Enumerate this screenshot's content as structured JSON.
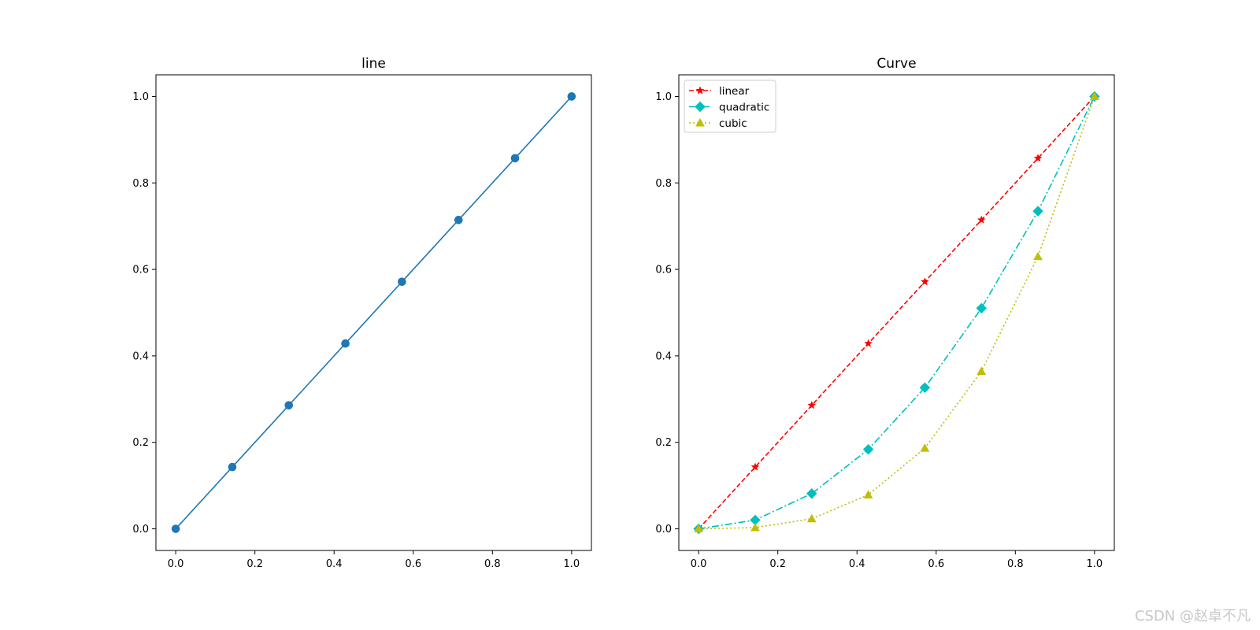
{
  "chart_data": [
    {
      "type": "line",
      "title": "line",
      "xlabel": "",
      "ylabel": "",
      "xlim": [
        -0.05,
        1.05
      ],
      "ylim": [
        -0.05,
        1.05
      ],
      "xticks": [
        0.0,
        0.2,
        0.4,
        0.6,
        0.8,
        1.0
      ],
      "yticks": [
        0.0,
        0.2,
        0.4,
        0.6,
        0.8,
        1.0
      ],
      "xtick_labels": [
        "0.0",
        "0.2",
        "0.4",
        "0.6",
        "0.8",
        "1.0"
      ],
      "ytick_labels": [
        "0.0",
        "0.2",
        "0.4",
        "0.6",
        "0.8",
        "1.0"
      ],
      "grid": false,
      "x": [
        0.0,
        0.1429,
        0.2857,
        0.4286,
        0.5714,
        0.7143,
        0.8571,
        1.0
      ],
      "series": [
        {
          "values": [
            0.0,
            0.1429,
            0.2857,
            0.4286,
            0.5714,
            0.7143,
            0.8571,
            1.0
          ],
          "color": "#1f77b4",
          "marker": "circle",
          "linestyle": "solid"
        }
      ]
    },
    {
      "type": "line",
      "title": "Curve",
      "xlabel": "",
      "ylabel": "",
      "xlim": [
        -0.05,
        1.05
      ],
      "ylim": [
        -0.05,
        1.05
      ],
      "xticks": [
        0.0,
        0.2,
        0.4,
        0.6,
        0.8,
        1.0
      ],
      "yticks": [
        0.0,
        0.2,
        0.4,
        0.6,
        0.8,
        1.0
      ],
      "xtick_labels": [
        "0.0",
        "0.2",
        "0.4",
        "0.6",
        "0.8",
        "1.0"
      ],
      "ytick_labels": [
        "0.0",
        "0.2",
        "0.4",
        "0.6",
        "0.8",
        "1.0"
      ],
      "grid": false,
      "legend": "upper-left",
      "x": [
        0.0,
        0.1429,
        0.2857,
        0.4286,
        0.5714,
        0.7143,
        0.8571,
        1.0
      ],
      "series": [
        {
          "name": "linear",
          "values": [
            0.0,
            0.1429,
            0.2857,
            0.4286,
            0.5714,
            0.7143,
            0.8571,
            1.0
          ],
          "color": "#ff0000",
          "marker": "star",
          "linestyle": "dashed"
        },
        {
          "name": "quadratic",
          "values": [
            0.0,
            0.0204,
            0.0816,
            0.1837,
            0.3265,
            0.5102,
            0.7347,
            1.0
          ],
          "color": "#00bfbf",
          "marker": "diamond",
          "linestyle": "dashdot"
        },
        {
          "name": "cubic",
          "values": [
            0.0,
            0.0029,
            0.0233,
            0.0787,
            0.1866,
            0.3644,
            0.6297,
            1.0
          ],
          "color": "#bfbf00",
          "marker": "triangle",
          "linestyle": "dotted"
        }
      ]
    }
  ],
  "watermark": "CSDN @赵卓不凡"
}
